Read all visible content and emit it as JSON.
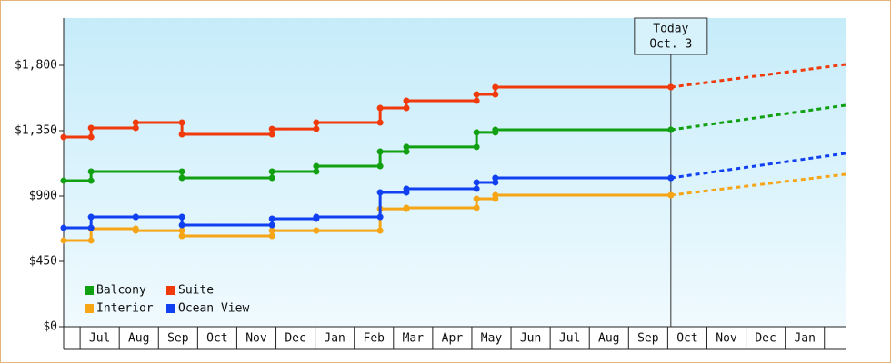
{
  "chart_data": {
    "type": "step-line",
    "ylim": [
      0,
      2125
    ],
    "yticks": [
      {
        "value": 0,
        "label": "$0"
      },
      {
        "value": 450,
        "label": "$450"
      },
      {
        "value": 900,
        "label": "$900"
      },
      {
        "value": 1350,
        "label": "$1,350"
      },
      {
        "value": 1800,
        "label": "$1,800"
      }
    ],
    "xlim": [
      -0.42,
      19.54
    ],
    "xticks": [
      {
        "value": 0,
        "label": "Jul"
      },
      {
        "value": 1,
        "label": "Aug"
      },
      {
        "value": 2,
        "label": "Sep"
      },
      {
        "value": 3,
        "label": "Oct"
      },
      {
        "value": 4,
        "label": "Nov"
      },
      {
        "value": 5,
        "label": "Dec"
      },
      {
        "value": 6,
        "label": "Jan"
      },
      {
        "value": 7,
        "label": "Feb"
      },
      {
        "value": 8,
        "label": "Mar"
      },
      {
        "value": 9,
        "label": "Apr"
      },
      {
        "value": 10,
        "label": "May"
      },
      {
        "value": 11,
        "label": "Jun"
      },
      {
        "value": 12,
        "label": "Jul"
      },
      {
        "value": 13,
        "label": "Aug"
      },
      {
        "value": 14,
        "label": "Sep"
      },
      {
        "value": 15,
        "label": "Oct"
      },
      {
        "value": 16,
        "label": "Nov"
      },
      {
        "value": 17,
        "label": "Dec"
      },
      {
        "value": 18,
        "label": "Jan"
      }
    ],
    "annotation": {
      "title": "Today",
      "subtitle": "Oct. 3",
      "x": 15.08
    },
    "series": [
      {
        "name": "Balcony",
        "color": "#11a011",
        "x": [
          -0.42,
          0.28,
          2.6,
          4.9,
          6.03,
          7.66,
          8.33,
          10.12,
          10.6,
          15.08
        ],
        "values": [
          1006,
          1069,
          1025,
          1069,
          1106,
          1206,
          1238,
          1338,
          1356,
          1356
        ],
        "projection": {
          "x": [
            15.08,
            19.54
          ],
          "values": [
            1356,
            1525
          ]
        }
      },
      {
        "name": "Suite",
        "color": "#f03a0c",
        "x": [
          -0.42,
          0.28,
          1.42,
          2.6,
          4.9,
          6.03,
          7.66,
          8.33,
          10.12,
          10.6,
          15.08
        ],
        "values": [
          1306,
          1369,
          1406,
          1325,
          1362,
          1406,
          1506,
          1556,
          1600,
          1650,
          1650
        ],
        "projection": {
          "x": [
            15.08,
            19.54
          ],
          "values": [
            1650,
            1806
          ]
        }
      },
      {
        "name": "Interior",
        "color": "#f5a516",
        "x": [
          -0.42,
          0.28,
          1.42,
          2.6,
          4.9,
          6.03,
          7.66,
          8.33,
          10.12,
          10.6,
          15.08
        ],
        "values": [
          594,
          675,
          662,
          625,
          662,
          662,
          812,
          819,
          881,
          906,
          906
        ],
        "projection": {
          "x": [
            15.08,
            19.54
          ],
          "values": [
            906,
            1050
          ]
        }
      },
      {
        "name": "Ocean View",
        "color": "#1040f0",
        "x": [
          -0.42,
          0.28,
          1.42,
          2.6,
          4.9,
          6.03,
          7.66,
          8.33,
          10.12,
          10.6,
          15.08
        ],
        "values": [
          681,
          756,
          756,
          700,
          744,
          756,
          925,
          950,
          994,
          1025,
          1025
        ],
        "projection": {
          "x": [
            15.08,
            19.54
          ],
          "values": [
            1025,
            1194
          ]
        }
      }
    ]
  }
}
